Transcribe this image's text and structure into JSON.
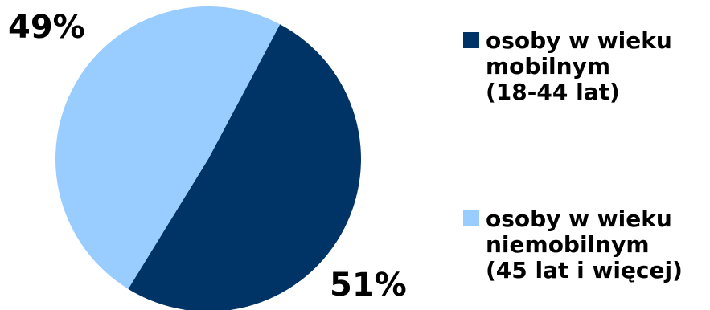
{
  "chart_data": {
    "type": "pie",
    "categories": [
      "osoby w wieku mobilnym (18-44 lat)",
      "osoby w wieku niemobilnym (45 lat i więcej)"
    ],
    "values": [
      51,
      49
    ],
    "data_labels": [
      "51%",
      "49%"
    ],
    "colors": [
      "#003366",
      "#99CCFF"
    ],
    "legend_position": "right",
    "legend": [
      {
        "label": "osoby w wieku\nmobilnym\n(18-44 lat)",
        "color": "#003366"
      },
      {
        "label": "osoby w wieku\nniemobilnym\n(45 lat i więcej)",
        "color": "#99CCFF"
      }
    ],
    "title": ""
  }
}
